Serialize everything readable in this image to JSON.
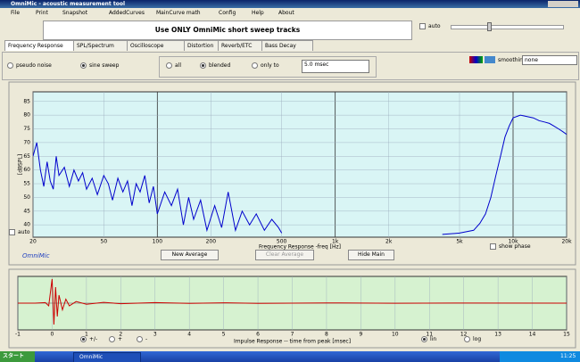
{
  "window": {
    "title": "OmniMic - acoustic measurement tool"
  },
  "menu": [
    "File",
    "Print",
    "Snapshot",
    "AddedCurves",
    "MainCurve math",
    "Config",
    "Help",
    "About"
  ],
  "banner": "Use ONLY OmniMic short sweep tracks",
  "auto_top": "auto",
  "tabs": [
    "Frequency Response",
    "SPL/Spectrum",
    "Oscilloscope",
    "Distortion",
    "Reverb/ETC",
    "Bass Decay"
  ],
  "options": {
    "pseudo_noise": "pseudo noise",
    "sine_sweep": "sine sweep",
    "all": "all",
    "blended": "blended",
    "only_to": "only to",
    "window": "5.0 msec",
    "smoothing": "smoothing",
    "smoothing_value": "none"
  },
  "chart_data": [
    {
      "type": "line",
      "log_x": true,
      "ylabel": "[dBSPL]",
      "xlabel": "Frequency Response -freq [Hz]",
      "xlim": [
        20,
        20000
      ],
      "ylim": [
        35.5,
        88.5
      ],
      "xticks": [
        20,
        50,
        100,
        200,
        500,
        {
          "value": 1000,
          "label": "1k"
        },
        {
          "value": 2000,
          "label": "2k"
        },
        {
          "value": 5000,
          "label": "5k"
        },
        {
          "value": 10000,
          "label": "10k"
        },
        {
          "value": 20000,
          "label": "20k"
        }
      ],
      "yticks": [
        40,
        45,
        50,
        55,
        60,
        65,
        70,
        75,
        80,
        85
      ],
      "x": [
        20,
        21,
        22,
        23,
        24,
        25,
        26,
        27,
        28,
        30,
        32,
        34,
        36,
        38,
        40,
        43,
        46,
        50,
        53,
        56,
        60,
        64,
        68,
        72,
        76,
        80,
        85,
        90,
        95,
        100,
        110,
        120,
        130,
        140,
        150,
        160,
        175,
        190,
        210,
        230,
        250,
        275,
        300,
        330,
        360,
        400,
        440,
        480,
        500,
        700,
        4000,
        5000,
        6000,
        6500,
        7000,
        7500,
        8000,
        8500,
        9000,
        9500,
        10000,
        11000,
        12000,
        13000,
        14000,
        15000,
        16000,
        17000,
        18000,
        19000,
        20000
      ],
      "series": [
        {
          "color": "#0000cc",
          "values": [
            65,
            70,
            60,
            54,
            63,
            56,
            53,
            65,
            58,
            61,
            54,
            60,
            56,
            59,
            53,
            57,
            51,
            58,
            55,
            49,
            57,
            52,
            56,
            47,
            55,
            52,
            58,
            48,
            54,
            44,
            52,
            47,
            53,
            40,
            50,
            42,
            49,
            38,
            47,
            39,
            52,
            38,
            45,
            40,
            44,
            38,
            42,
            39,
            37,
            null,
            36.5,
            37,
            38,
            40.5,
            44,
            50,
            58,
            65,
            72,
            76,
            79,
            80,
            79.5,
            79,
            78,
            77.5,
            77,
            76,
            75,
            74,
            73
          ]
        }
      ]
    },
    {
      "type": "line",
      "xlabel": "Impulse Response -- time from peak [msec]",
      "xlim": [
        -1,
        15
      ],
      "ylim": [
        -1,
        1
      ],
      "xticks": [
        -1,
        0,
        1,
        2,
        3,
        4,
        5,
        6,
        7,
        8,
        9,
        10,
        11,
        12,
        13,
        14,
        15
      ],
      "x": [
        -1,
        -0.5,
        -0.2,
        -0.1,
        0,
        0.05,
        0.1,
        0.15,
        0.2,
        0.3,
        0.4,
        0.5,
        0.7,
        1,
        1.5,
        2,
        3,
        4,
        5,
        6,
        8,
        10,
        12,
        15
      ],
      "series": [
        {
          "color": "#cc0000",
          "values": [
            0,
            0,
            0.02,
            -0.1,
            0.9,
            -0.8,
            0.6,
            -0.5,
            0.3,
            -0.25,
            0.15,
            -0.1,
            0.06,
            -0.04,
            0.03,
            -0.02,
            0.02,
            -0.01,
            0.015,
            -0.01,
            0.01,
            -0.005,
            0.005,
            0
          ]
        }
      ]
    }
  ],
  "buttons": [
    "New Average",
    "Clear Average",
    "Hide Main"
  ],
  "show_phase": "show phase",
  "auto_check": "auto",
  "brand": "OmniMic",
  "impulse_options": [
    "+/-",
    "+",
    "-",
    "lin",
    "log"
  ],
  "taskbar": {
    "start": "スタート",
    "app": "OmniMic",
    "clock": "11:25"
  }
}
